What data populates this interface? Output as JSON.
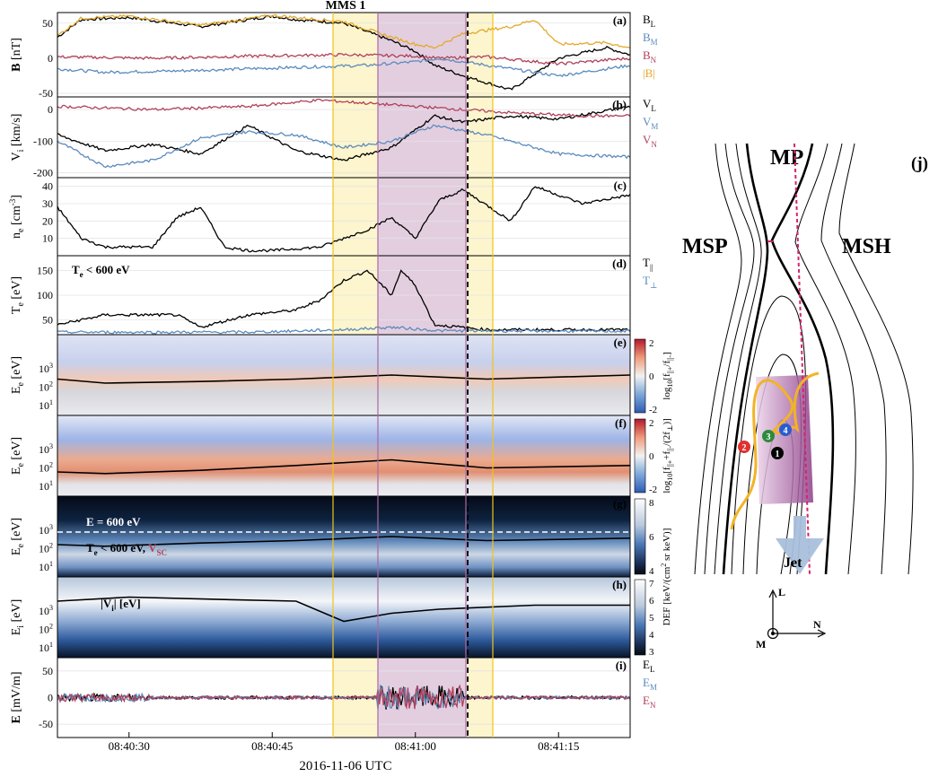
{
  "figure": {
    "title": "MMS 1",
    "xlabel": "2016-11-06 UTC",
    "xticks": [
      "08:40:30",
      "08:40:45",
      "08:41:00",
      "08:41:15"
    ]
  },
  "colors": {
    "black": "#000000",
    "blue": "#5b8bbd",
    "red": "#b0405a",
    "gold": "#e3a92d",
    "yellow_band": "#fbf3c4",
    "purple_band": "#dcc2d8",
    "magenta": "#d5246b"
  },
  "chart_data": [
    {
      "type": "line",
      "panel": "(a)",
      "ylabel_main": "B",
      "ylabel_sub": "[nT]",
      "ylim": [
        -55,
        65
      ],
      "yticks": [
        "50",
        "0",
        "-50"
      ],
      "series": [
        {
          "name": "B_L",
          "label_main": "B",
          "label_sub": "L",
          "color": "#000000",
          "x": [
            0,
            5,
            15,
            30,
            45,
            50,
            60,
            70,
            75,
            79,
            85,
            95,
            105,
            115,
            120
          ],
          "y": [
            30,
            55,
            58,
            45,
            60,
            55,
            50,
            25,
            10,
            -10,
            -25,
            -45,
            0,
            15,
            5
          ]
        },
        {
          "name": "B_M",
          "label_main": "B",
          "label_sub": "M",
          "color": "#5b8bbd",
          "x": [
            0,
            10,
            25,
            40,
            55,
            65,
            75,
            80,
            90,
            105,
            120
          ],
          "y": [
            -15,
            -20,
            -18,
            -15,
            -12,
            -10,
            -5,
            0,
            -10,
            -25,
            -10
          ]
        },
        {
          "name": "B_N",
          "label_main": "B",
          "label_sub": "N",
          "color": "#b0405a",
          "x": [
            0,
            20,
            40,
            60,
            75,
            80,
            90,
            105,
            120
          ],
          "y": [
            2,
            0,
            3,
            5,
            3,
            0,
            2,
            -8,
            0
          ]
        },
        {
          "name": "|B|",
          "label_main": "|B|",
          "label_sub": "",
          "color": "#e3a92d",
          "x": [
            0,
            5,
            15,
            30,
            45,
            50,
            60,
            70,
            75,
            79,
            85,
            95,
            100,
            105,
            115,
            120
          ],
          "y": [
            32,
            57,
            60,
            47,
            61,
            58,
            52,
            30,
            20,
            15,
            35,
            45,
            55,
            20,
            22,
            15
          ]
        }
      ]
    },
    {
      "type": "line",
      "panel": "(b)",
      "ylabel_main": "V",
      "ylabel_sub": "i",
      "ylabel_unit": "[km/s]",
      "ylim": [
        -215,
        40
      ],
      "yticks": [
        "0",
        "-100",
        "-200"
      ],
      "series": [
        {
          "name": "V_L",
          "label_main": "V",
          "label_sub": "L",
          "color": "#000000",
          "x": [
            0,
            10,
            20,
            30,
            40,
            50,
            60,
            70,
            79,
            85,
            95,
            105,
            120
          ],
          "y": [
            -80,
            -130,
            -110,
            -140,
            -50,
            -130,
            -160,
            -120,
            -20,
            -40,
            -20,
            -30,
            10
          ]
        },
        {
          "name": "V_M",
          "label_main": "V",
          "label_sub": "M",
          "color": "#5b8bbd",
          "x": [
            0,
            10,
            20,
            30,
            40,
            50,
            60,
            70,
            79,
            90,
            105,
            120
          ],
          "y": [
            -100,
            -180,
            -160,
            -90,
            -70,
            -80,
            -120,
            -100,
            -50,
            -80,
            -140,
            -150
          ]
        },
        {
          "name": "V_N",
          "label_main": "V",
          "label_sub": "N",
          "color": "#b0405a",
          "x": [
            0,
            20,
            40,
            55,
            65,
            80,
            95,
            110,
            120
          ],
          "y": [
            10,
            0,
            10,
            30,
            20,
            5,
            -10,
            -20,
            -20
          ]
        }
      ]
    },
    {
      "type": "line",
      "panel": "(c)",
      "ylabel_main": "n",
      "ylabel_sub": "e",
      "ylabel_unit": "[cm",
      "ylabel_sup": "-3",
      "ylabel_close": "]",
      "ylim": [
        0,
        45
      ],
      "yticks": [
        "40",
        "30",
        "20",
        "10"
      ],
      "series": [
        {
          "name": "n_e",
          "label_main": "",
          "label_sub": "",
          "color": "#000000",
          "x": [
            0,
            5,
            10,
            20,
            25,
            30,
            35,
            40,
            45,
            55,
            65,
            70,
            75,
            80,
            85,
            95,
            100,
            110,
            120
          ],
          "y": [
            28,
            10,
            5,
            5,
            22,
            28,
            5,
            3,
            3,
            5,
            15,
            22,
            10,
            32,
            38,
            20,
            40,
            30,
            35
          ]
        }
      ]
    },
    {
      "type": "line",
      "panel": "(d)",
      "ylabel_main": "T",
      "ylabel_sub": "e",
      "ylabel_unit": "[eV]",
      "ylim": [
        20,
        180
      ],
      "yticks": [
        "150",
        "100",
        "50"
      ],
      "annotation": "T",
      "annotation_sub": "e",
      "annotation_rest": " < 600 eV",
      "series": [
        {
          "name": "T_par",
          "label_main": "T",
          "label_sub": "||",
          "color": "#000000",
          "x": [
            0,
            5,
            10,
            25,
            30,
            40,
            50,
            55,
            60,
            65,
            70,
            72,
            75,
            79,
            90,
            120
          ],
          "y": [
            40,
            50,
            60,
            60,
            35,
            60,
            70,
            90,
            130,
            150,
            100,
            150,
            120,
            40,
            30,
            30
          ]
        },
        {
          "name": "T_perp",
          "label_main": "T",
          "label_sub": "⊥",
          "color": "#5b8bbd",
          "x": [
            0,
            40,
            60,
            70,
            80,
            120
          ],
          "y": [
            25,
            25,
            30,
            35,
            28,
            27
          ]
        }
      ]
    },
    {
      "type": "heatmap",
      "panel": "(e)",
      "ylabel_main": "E",
      "ylabel_sub": "e",
      "ylabel_unit": "[eV]",
      "yticks": [
        "10^3",
        "10^2",
        "10^1"
      ],
      "colorbar_ticks": [
        "2",
        "0",
        "-2"
      ],
      "colorbar_label": "log10[f||+/f||-]",
      "overlay": {
        "color": "#000000",
        "x": [
          0,
          10,
          30,
          50,
          70,
          90,
          120
        ],
        "y": [
          0.55,
          0.6,
          0.58,
          0.55,
          0.5,
          0.55,
          0.5
        ]
      }
    },
    {
      "type": "heatmap",
      "panel": "(f)",
      "ylabel_main": "E",
      "ylabel_sub": "e",
      "ylabel_unit": "[eV]",
      "yticks": [
        "10^3",
        "10^2",
        "10^1"
      ],
      "colorbar_ticks": [
        "2",
        "0",
        "-2"
      ],
      "colorbar_label": "log10[f||+ + f||-/(2f⊥)]",
      "overlay": {
        "color": "#000000",
        "x": [
          0,
          10,
          30,
          50,
          70,
          90,
          120
        ],
        "y": [
          0.7,
          0.72,
          0.68,
          0.62,
          0.55,
          0.65,
          0.62
        ]
      }
    },
    {
      "type": "heatmap",
      "panel": "(g)",
      "ylabel_main": "E",
      "ylabel_sub": "e",
      "ylabel_unit": "[eV]",
      "yticks": [
        "10^3",
        "10^2",
        "10^1"
      ],
      "colorbar_ticks": [
        "8",
        "6",
        "4"
      ],
      "annotation_top": "E = 600 eV",
      "annotation_bottom_main": "T",
      "annotation_bottom_sub": "e",
      "annotation_bottom_rest": " < 600 eV, ",
      "annotation_bottom_red": "V",
      "annotation_bottom_red_sub": "SC",
      "overlay": {
        "color": "#000000",
        "x": [
          0,
          10,
          30,
          50,
          70,
          90,
          120
        ],
        "y": [
          0.6,
          0.62,
          0.58,
          0.55,
          0.5,
          0.55,
          0.52
        ]
      }
    },
    {
      "type": "heatmap",
      "panel": "(h)",
      "ylabel_main": "E",
      "ylabel_sub": "i",
      "ylabel_unit": "[eV]",
      "yticks": [
        "10^3",
        "10^2",
        "10^1"
      ],
      "colorbar_ticks": [
        "7",
        "6",
        "5",
        "4",
        "3"
      ],
      "colorbar_label": "DEF [keV/(cm² sr keV)]",
      "annotation": "|V",
      "annotation_sub": "i",
      "annotation_rest": "| [eV]",
      "overlay": {
        "color": "#000000",
        "x": [
          0,
          15,
          35,
          50,
          60,
          70,
          80,
          100,
          120
        ],
        "y": [
          0.3,
          0.25,
          0.28,
          0.3,
          0.55,
          0.45,
          0.4,
          0.35,
          0.35
        ]
      }
    },
    {
      "type": "line",
      "panel": "(i)",
      "ylabel_main": "E",
      "ylabel_sub": "",
      "ylabel_unit": "[mV/m]",
      "ylim": [
        -75,
        75
      ],
      "yticks": [
        "50",
        "0",
        "-50"
      ],
      "series": [
        {
          "name": "E_L",
          "label_main": "E",
          "label_sub": "L",
          "color": "#000000"
        },
        {
          "name": "E_M",
          "label_main": "E",
          "label_sub": "M",
          "color": "#5b8bbd"
        },
        {
          "name": "E_N",
          "label_main": "E",
          "label_sub": "N",
          "color": "#b0405a"
        }
      ]
    }
  ],
  "schematic": {
    "panel": "(j)",
    "labels": {
      "mp": "MP",
      "msp": "MSP",
      "msh": "MSH",
      "jet": "Jet",
      "l": "L",
      "n": "N",
      "m": "M"
    },
    "markers": [
      "1",
      "2",
      "3",
      "4"
    ],
    "marker_colors": [
      "#000000",
      "#e03030",
      "#2e8b3a",
      "#2a5bd0"
    ]
  }
}
